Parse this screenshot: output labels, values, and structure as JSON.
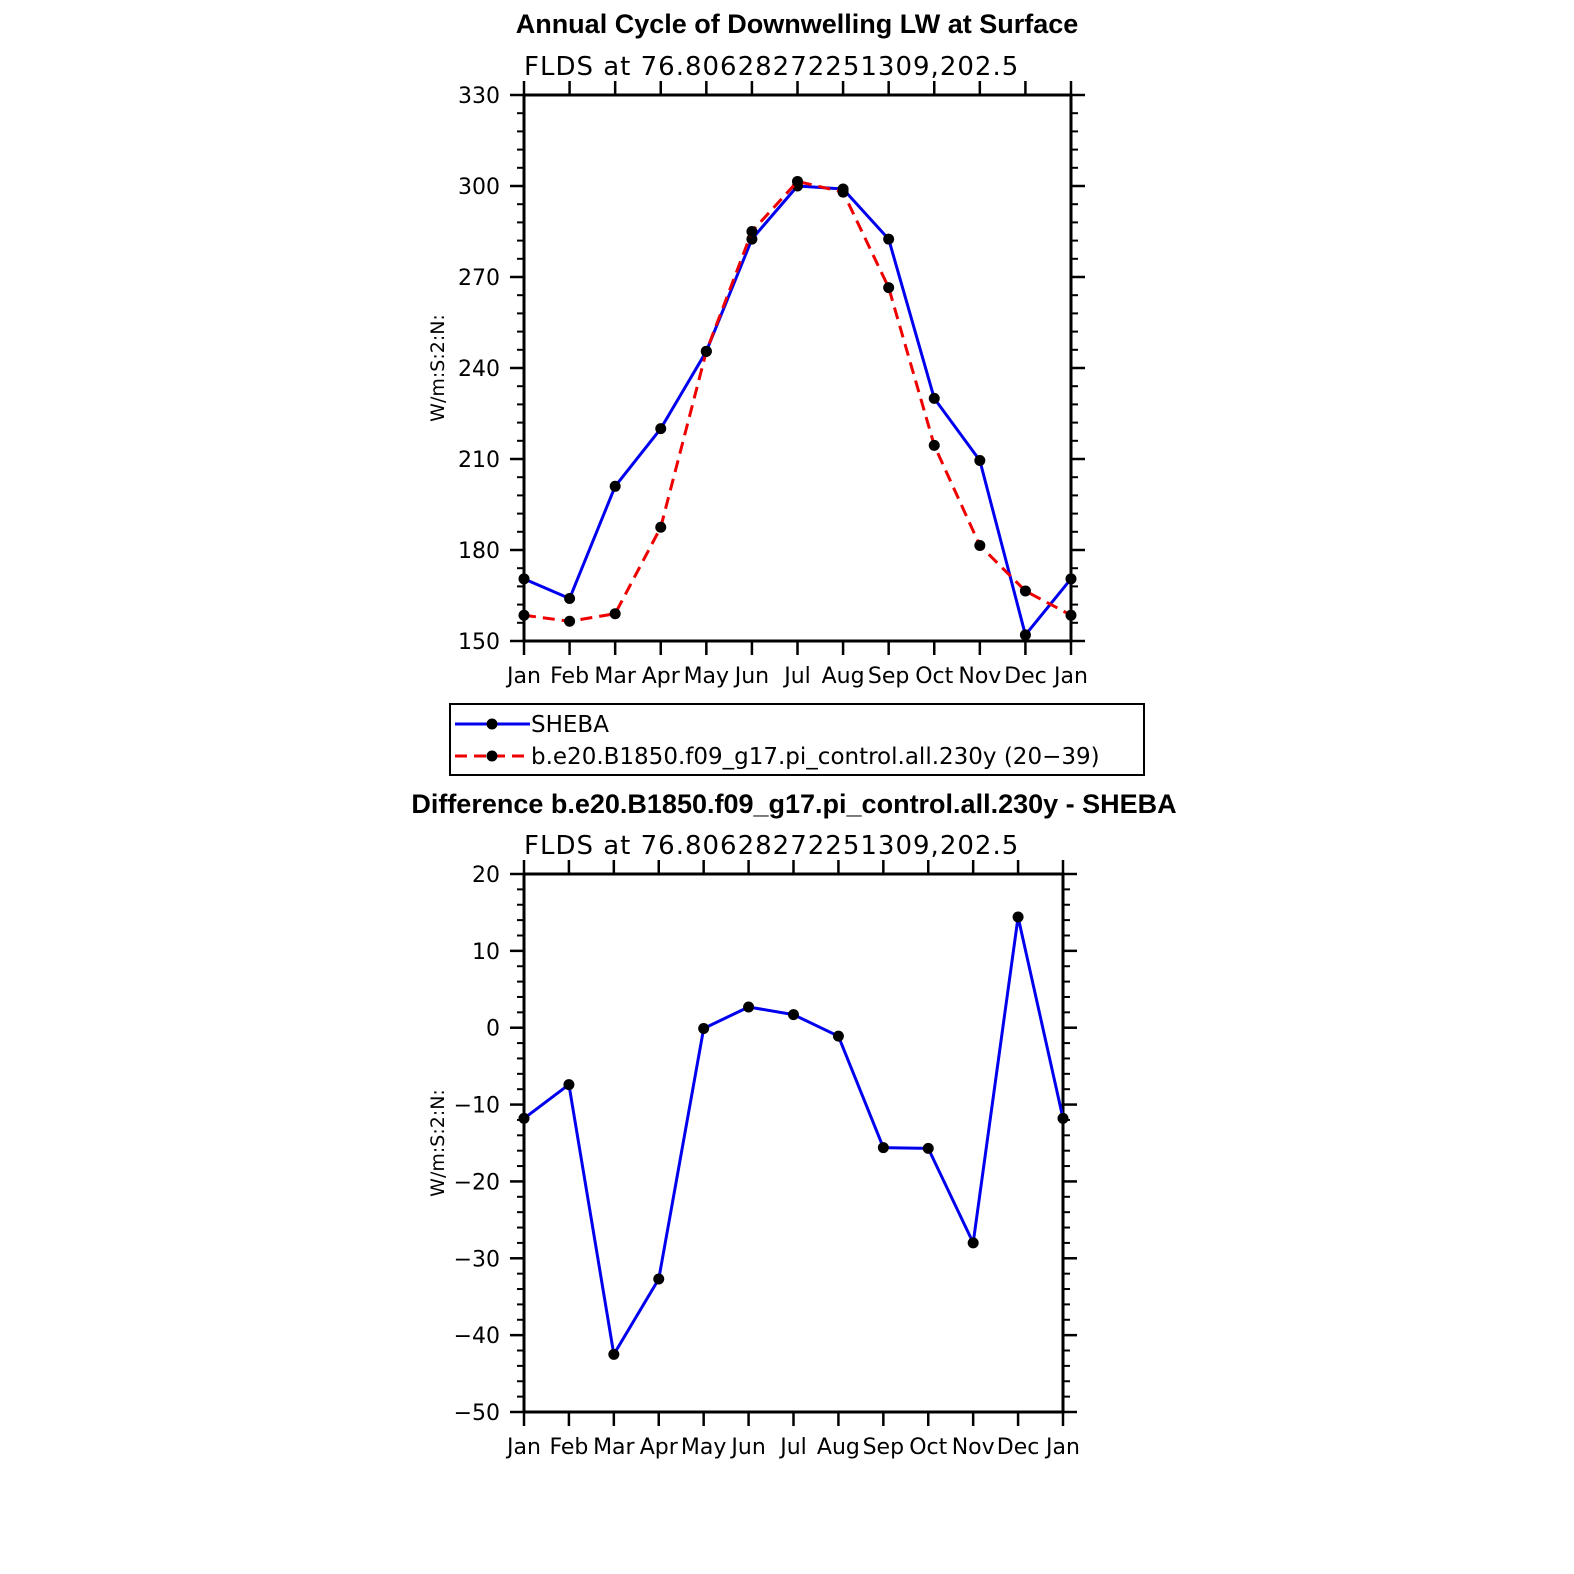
{
  "chart_data": [
    {
      "type": "line",
      "title": "Annual Cycle of Downwelling LW at Surface",
      "subtitle": "FLDS at 76.80628272251309,202.5",
      "xlabel": "",
      "ylabel": "W/m:S:2:N:",
      "categories": [
        "Jan",
        "Feb",
        "Mar",
        "Apr",
        "May",
        "Jun",
        "Jul",
        "Aug",
        "Sep",
        "Oct",
        "Nov",
        "Dec",
        "Jan"
      ],
      "ylim": [
        150,
        330
      ],
      "yticks": [
        150,
        180,
        210,
        240,
        270,
        300,
        330
      ],
      "series": [
        {
          "name": "SHEBA",
          "color": "#0000ee",
          "dash": "solid",
          "values": [
            170.5,
            164,
            201,
            220,
            245.5,
            282.5,
            300,
            299,
            282.5,
            230,
            209.5,
            152,
            170.5
          ]
        },
        {
          "name": "b.e20.B1850.f09_g17.pi_control.all.230y (20−39)",
          "color": "#ee0000",
          "dash": "dashed",
          "values": [
            158.5,
            156.5,
            159,
            187.5,
            245.5,
            285,
            301.5,
            298,
            266.5,
            214.5,
            181.5,
            166.5,
            158.5
          ]
        }
      ],
      "legend": "below"
    },
    {
      "type": "line",
      "title": "Difference b.e20.B1850.f09_g17.pi_control.all.230y - SHEBA",
      "subtitle": "FLDS at 76.80628272251309,202.5",
      "xlabel": "",
      "ylabel": "W/m:S:2:N:",
      "categories": [
        "Jan",
        "Feb",
        "Mar",
        "Apr",
        "May",
        "Jun",
        "Jul",
        "Aug",
        "Sep",
        "Oct",
        "Nov",
        "Dec",
        "Jan"
      ],
      "ylim": [
        -50,
        20
      ],
      "yticks": [
        -50,
        -40,
        -30,
        -20,
        -10,
        0,
        10,
        20
      ],
      "ytick_labels": [
        "−50",
        "−40",
        "−30",
        "−20",
        "−10",
        "0",
        "10",
        "20"
      ],
      "series": [
        {
          "color": "#0000ee",
          "dash": "solid",
          "values": [
            -11.8,
            -7.4,
            -42.5,
            -32.7,
            -0.1,
            2.7,
            1.7,
            -1.1,
            -15.6,
            -15.7,
            -28,
            14.4,
            -11.8
          ]
        }
      ]
    }
  ]
}
